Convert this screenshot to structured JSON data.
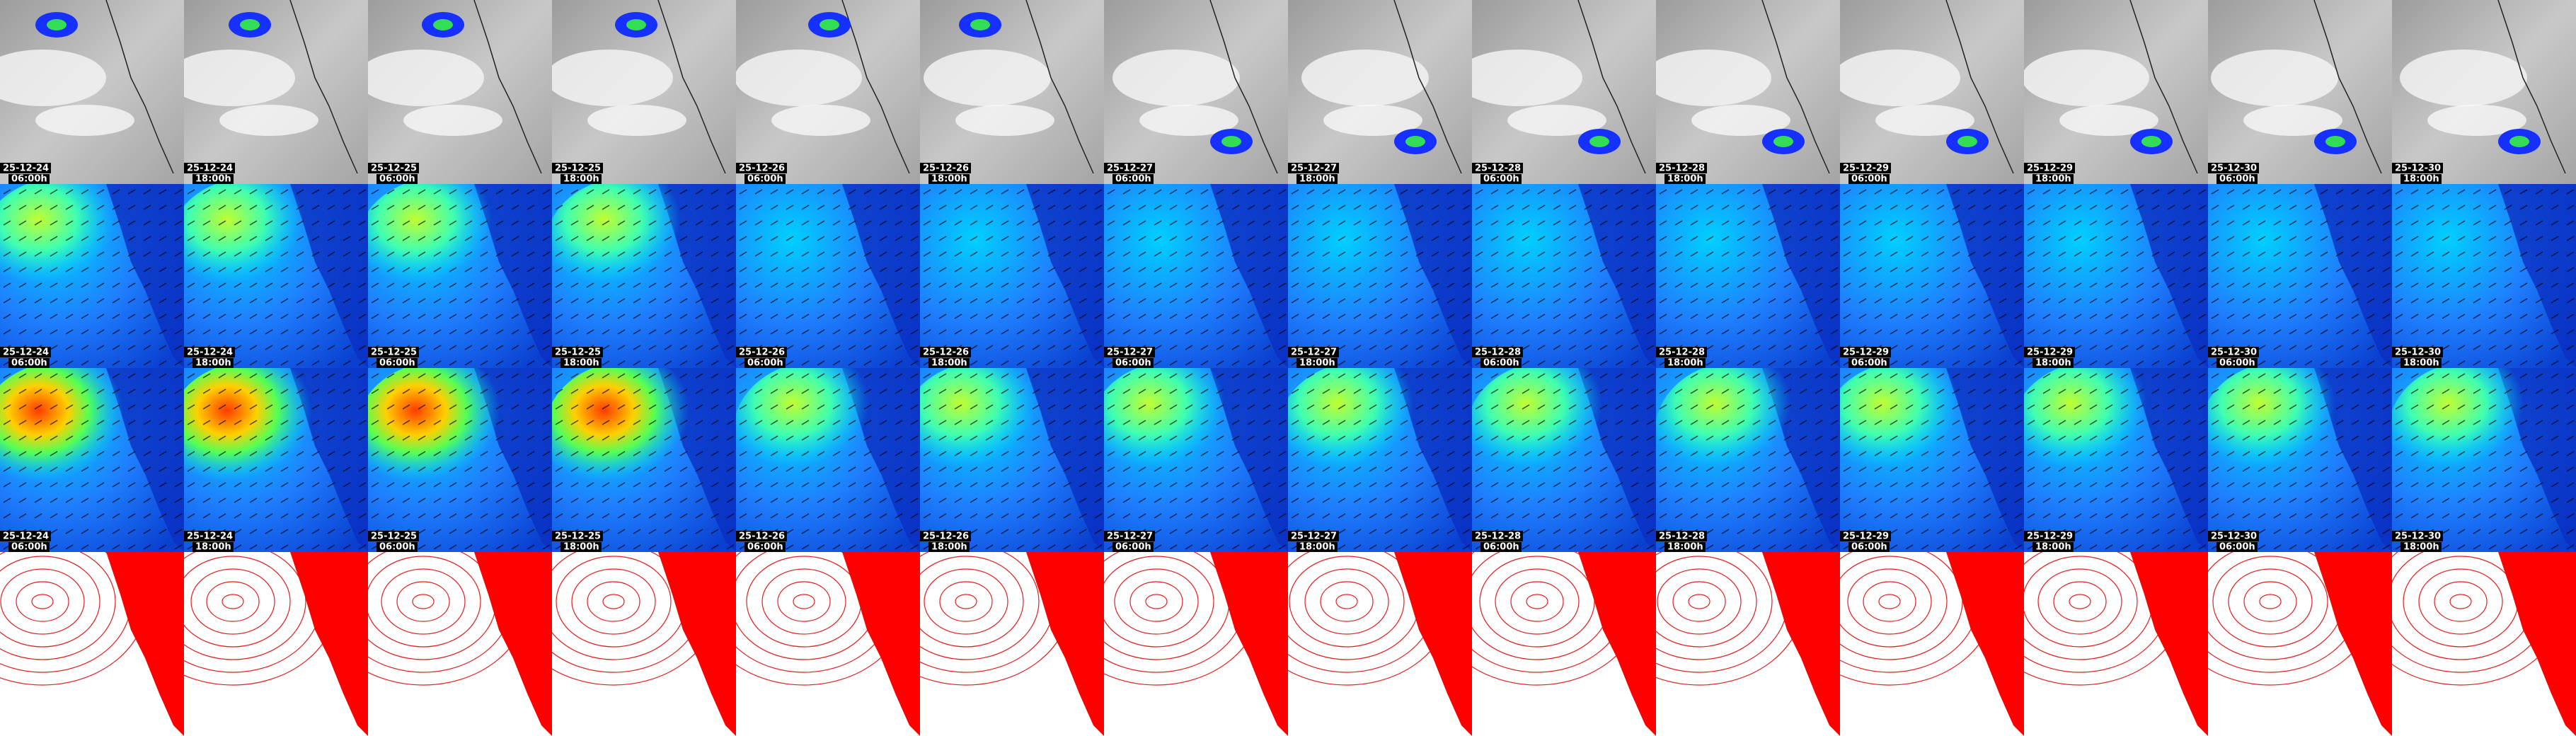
{
  "frames": [
    {
      "date": "25-12-24",
      "time": "06:00h"
    },
    {
      "date": "25-12-24",
      "time": "18:00h"
    },
    {
      "date": "25-12-25",
      "time": "06:00h"
    },
    {
      "date": "25-12-25",
      "time": "18:00h"
    },
    {
      "date": "25-12-26",
      "time": "06:00h"
    },
    {
      "date": "25-12-26",
      "time": "18:00h"
    },
    {
      "date": "25-12-27",
      "time": "06:00h"
    },
    {
      "date": "25-12-27",
      "time": "18:00h"
    },
    {
      "date": "25-12-28",
      "time": "06:00h"
    },
    {
      "date": "25-12-28",
      "time": "18:00h"
    },
    {
      "date": "25-12-29",
      "time": "06:00h"
    },
    {
      "date": "25-12-29",
      "time": "18:00h"
    },
    {
      "date": "25-12-30",
      "time": "06:00h"
    },
    {
      "date": "25-12-30",
      "time": "18:00h"
    }
  ]
}
